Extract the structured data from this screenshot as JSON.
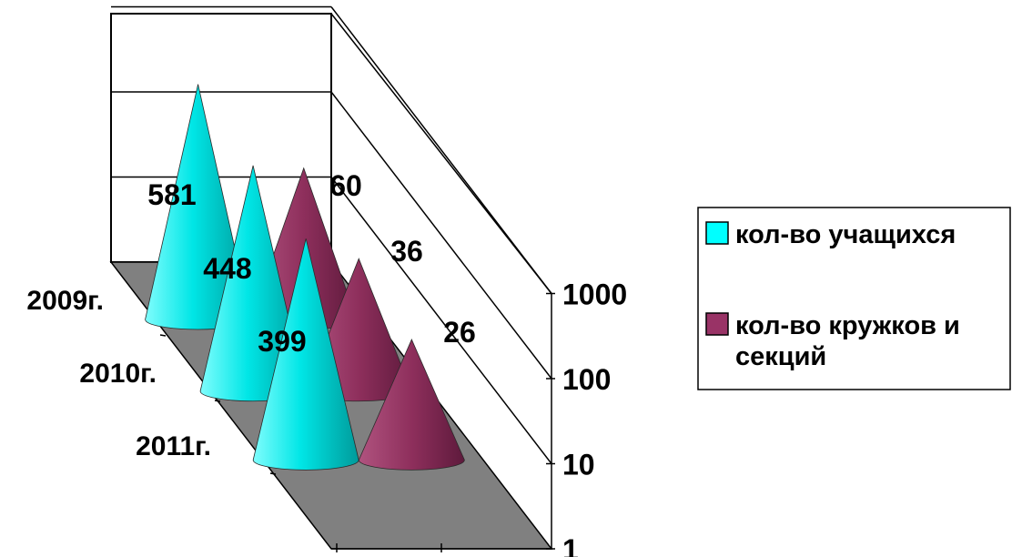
{
  "chart_data": {
    "type": "bar",
    "style": "3d-cone",
    "categories": [
      "2009г.",
      "2010г.",
      "2011г."
    ],
    "series": [
      {
        "name": "кол-во учащихся",
        "values": [
          581,
          448,
          399
        ],
        "color": "#00FFFF"
      },
      {
        "name": "кол-во кружков и секций",
        "values": [
          60,
          36,
          26
        ],
        "color": "#993366"
      }
    ],
    "y_scale": "log",
    "ylim": [
      1,
      1000
    ],
    "y_ticks": [
      "1",
      "10",
      "100",
      "1000"
    ],
    "grid": true,
    "legend_position": "right",
    "floor_color": "#808080"
  }
}
